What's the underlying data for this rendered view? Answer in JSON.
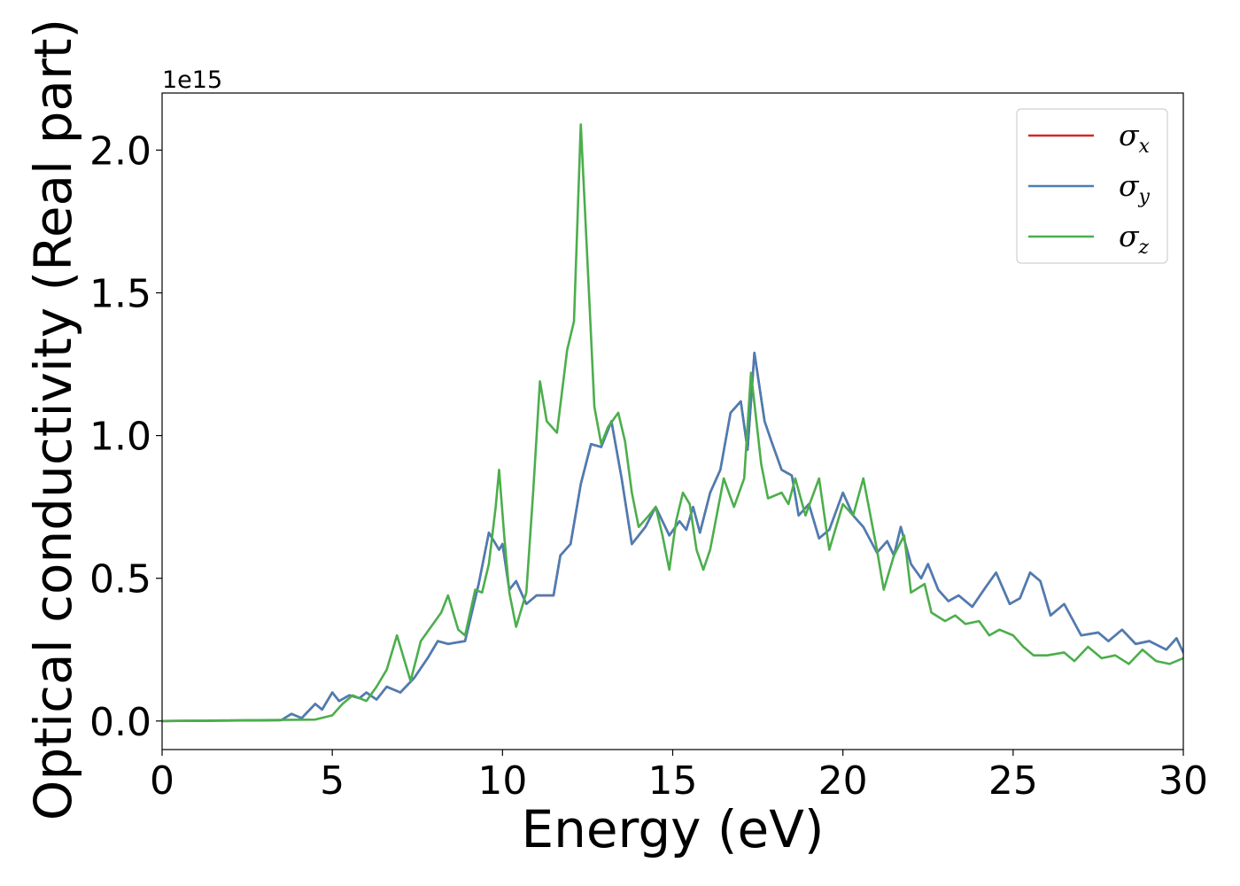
{
  "chart_data": {
    "type": "line",
    "xlabel": "Energy (eV)",
    "ylabel": "Optical conductivity (Real part)",
    "y_offset_label": "1e15",
    "xlim": [
      0,
      30
    ],
    "ylim": [
      -0.1,
      2.2
    ],
    "x_ticks": [
      0,
      5,
      10,
      15,
      20,
      25,
      30
    ],
    "x_tick_labels": [
      "0",
      "5",
      "10",
      "15",
      "20",
      "25",
      "30"
    ],
    "y_ticks": [
      0.0,
      0.5,
      1.0,
      1.5,
      2.0
    ],
    "y_tick_labels": [
      "0.0",
      "0.5",
      "1.0",
      "1.5",
      "2.0"
    ],
    "grid": false,
    "legend_position": "top-right",
    "series": [
      {
        "name": "σx",
        "base": "σ",
        "sub": "x",
        "color": "#d62728",
        "points": [
          [
            0,
            0
          ],
          [
            3.5,
            0.003
          ],
          [
            3.8,
            0.025
          ],
          [
            4.1,
            0.01
          ],
          [
            4.5,
            0.06
          ],
          [
            4.7,
            0.04
          ],
          [
            5.0,
            0.1
          ],
          [
            5.2,
            0.07
          ],
          [
            5.5,
            0.09
          ],
          [
            5.8,
            0.08
          ],
          [
            6.0,
            0.1
          ],
          [
            6.3,
            0.075
          ],
          [
            6.6,
            0.12
          ],
          [
            7.0,
            0.1
          ],
          [
            7.4,
            0.15
          ],
          [
            7.8,
            0.22
          ],
          [
            8.1,
            0.28
          ],
          [
            8.4,
            0.27
          ],
          [
            8.9,
            0.28
          ],
          [
            9.3,
            0.48
          ],
          [
            9.6,
            0.66
          ],
          [
            9.9,
            0.6
          ],
          [
            10.0,
            0.62
          ],
          [
            10.2,
            0.46
          ],
          [
            10.4,
            0.49
          ],
          [
            10.7,
            0.41
          ],
          [
            11.0,
            0.44
          ],
          [
            11.5,
            0.44
          ],
          [
            11.7,
            0.58
          ],
          [
            12.0,
            0.62
          ],
          [
            12.3,
            0.83
          ],
          [
            12.6,
            0.97
          ],
          [
            12.9,
            0.96
          ],
          [
            13.2,
            1.05
          ],
          [
            13.5,
            0.85
          ],
          [
            13.8,
            0.62
          ],
          [
            14.2,
            0.68
          ],
          [
            14.5,
            0.75
          ],
          [
            14.9,
            0.65
          ],
          [
            15.2,
            0.7
          ],
          [
            15.4,
            0.67
          ],
          [
            15.6,
            0.75
          ],
          [
            15.8,
            0.66
          ],
          [
            16.1,
            0.8
          ],
          [
            16.4,
            0.88
          ],
          [
            16.7,
            1.08
          ],
          [
            17.0,
            1.12
          ],
          [
            17.2,
            0.95
          ],
          [
            17.4,
            1.29
          ],
          [
            17.7,
            1.05
          ],
          [
            17.9,
            0.98
          ],
          [
            18.2,
            0.88
          ],
          [
            18.5,
            0.86
          ],
          [
            18.7,
            0.72
          ],
          [
            19.0,
            0.76
          ],
          [
            19.3,
            0.64
          ],
          [
            19.6,
            0.67
          ],
          [
            20.0,
            0.8
          ],
          [
            20.3,
            0.72
          ],
          [
            20.6,
            0.68
          ],
          [
            21.0,
            0.59
          ],
          [
            21.3,
            0.63
          ],
          [
            21.5,
            0.58
          ],
          [
            21.7,
            0.68
          ],
          [
            22.0,
            0.55
          ],
          [
            22.3,
            0.5
          ],
          [
            22.5,
            0.55
          ],
          [
            22.8,
            0.46
          ],
          [
            23.1,
            0.42
          ],
          [
            23.4,
            0.44
          ],
          [
            23.8,
            0.4
          ],
          [
            24.2,
            0.47
          ],
          [
            24.5,
            0.52
          ],
          [
            24.9,
            0.41
          ],
          [
            25.2,
            0.43
          ],
          [
            25.5,
            0.52
          ],
          [
            25.8,
            0.49
          ],
          [
            26.1,
            0.37
          ],
          [
            26.5,
            0.41
          ],
          [
            27.0,
            0.3
          ],
          [
            27.5,
            0.31
          ],
          [
            27.8,
            0.28
          ],
          [
            28.2,
            0.32
          ],
          [
            28.6,
            0.27
          ],
          [
            29.0,
            0.28
          ],
          [
            29.5,
            0.25
          ],
          [
            29.8,
            0.29
          ],
          [
            30.0,
            0.24
          ]
        ]
      },
      {
        "name": "σy",
        "base": "σ",
        "sub": "y",
        "color": "#4a7eb5",
        "points": [
          [
            0,
            0
          ],
          [
            3.5,
            0.003
          ],
          [
            3.8,
            0.025
          ],
          [
            4.1,
            0.01
          ],
          [
            4.5,
            0.06
          ],
          [
            4.7,
            0.04
          ],
          [
            5.0,
            0.1
          ],
          [
            5.2,
            0.07
          ],
          [
            5.5,
            0.09
          ],
          [
            5.8,
            0.08
          ],
          [
            6.0,
            0.1
          ],
          [
            6.3,
            0.075
          ],
          [
            6.6,
            0.12
          ],
          [
            7.0,
            0.1
          ],
          [
            7.4,
            0.15
          ],
          [
            7.8,
            0.22
          ],
          [
            8.1,
            0.28
          ],
          [
            8.4,
            0.27
          ],
          [
            8.9,
            0.28
          ],
          [
            9.3,
            0.48
          ],
          [
            9.6,
            0.66
          ],
          [
            9.9,
            0.6
          ],
          [
            10.0,
            0.62
          ],
          [
            10.2,
            0.46
          ],
          [
            10.4,
            0.49
          ],
          [
            10.7,
            0.41
          ],
          [
            11.0,
            0.44
          ],
          [
            11.5,
            0.44
          ],
          [
            11.7,
            0.58
          ],
          [
            12.0,
            0.62
          ],
          [
            12.3,
            0.83
          ],
          [
            12.6,
            0.97
          ],
          [
            12.9,
            0.96
          ],
          [
            13.2,
            1.05
          ],
          [
            13.5,
            0.85
          ],
          [
            13.8,
            0.62
          ],
          [
            14.2,
            0.68
          ],
          [
            14.5,
            0.75
          ],
          [
            14.9,
            0.65
          ],
          [
            15.2,
            0.7
          ],
          [
            15.4,
            0.67
          ],
          [
            15.6,
            0.75
          ],
          [
            15.8,
            0.66
          ],
          [
            16.1,
            0.8
          ],
          [
            16.4,
            0.88
          ],
          [
            16.7,
            1.08
          ],
          [
            17.0,
            1.12
          ],
          [
            17.2,
            0.95
          ],
          [
            17.4,
            1.29
          ],
          [
            17.7,
            1.05
          ],
          [
            17.9,
            0.98
          ],
          [
            18.2,
            0.88
          ],
          [
            18.5,
            0.86
          ],
          [
            18.7,
            0.72
          ],
          [
            19.0,
            0.76
          ],
          [
            19.3,
            0.64
          ],
          [
            19.6,
            0.67
          ],
          [
            20.0,
            0.8
          ],
          [
            20.3,
            0.72
          ],
          [
            20.6,
            0.68
          ],
          [
            21.0,
            0.59
          ],
          [
            21.3,
            0.63
          ],
          [
            21.5,
            0.58
          ],
          [
            21.7,
            0.68
          ],
          [
            22.0,
            0.55
          ],
          [
            22.3,
            0.5
          ],
          [
            22.5,
            0.55
          ],
          [
            22.8,
            0.46
          ],
          [
            23.1,
            0.42
          ],
          [
            23.4,
            0.44
          ],
          [
            23.8,
            0.4
          ],
          [
            24.2,
            0.47
          ],
          [
            24.5,
            0.52
          ],
          [
            24.9,
            0.41
          ],
          [
            25.2,
            0.43
          ],
          [
            25.5,
            0.52
          ],
          [
            25.8,
            0.49
          ],
          [
            26.1,
            0.37
          ],
          [
            26.5,
            0.41
          ],
          [
            27.0,
            0.3
          ],
          [
            27.5,
            0.31
          ],
          [
            27.8,
            0.28
          ],
          [
            28.2,
            0.32
          ],
          [
            28.6,
            0.27
          ],
          [
            29.0,
            0.28
          ],
          [
            29.5,
            0.25
          ],
          [
            29.8,
            0.29
          ],
          [
            30.0,
            0.24
          ]
        ]
      },
      {
        "name": "σz",
        "base": "σ",
        "sub": "z",
        "color": "#4cae4c",
        "points": [
          [
            0,
            0
          ],
          [
            4.5,
            0.005
          ],
          [
            5.0,
            0.02
          ],
          [
            5.3,
            0.06
          ],
          [
            5.6,
            0.09
          ],
          [
            6.0,
            0.07
          ],
          [
            6.3,
            0.12
          ],
          [
            6.6,
            0.18
          ],
          [
            6.9,
            0.3
          ],
          [
            7.1,
            0.22
          ],
          [
            7.3,
            0.14
          ],
          [
            7.6,
            0.28
          ],
          [
            7.9,
            0.33
          ],
          [
            8.2,
            0.38
          ],
          [
            8.4,
            0.44
          ],
          [
            8.7,
            0.32
          ],
          [
            8.9,
            0.3
          ],
          [
            9.2,
            0.46
          ],
          [
            9.4,
            0.45
          ],
          [
            9.6,
            0.55
          ],
          [
            9.8,
            0.75
          ],
          [
            9.9,
            0.88
          ],
          [
            10.05,
            0.65
          ],
          [
            10.2,
            0.45
          ],
          [
            10.4,
            0.33
          ],
          [
            10.7,
            0.45
          ],
          [
            10.9,
            0.8
          ],
          [
            11.1,
            1.19
          ],
          [
            11.3,
            1.05
          ],
          [
            11.6,
            1.01
          ],
          [
            11.9,
            1.3
          ],
          [
            12.1,
            1.4
          ],
          [
            12.3,
            2.09
          ],
          [
            12.5,
            1.6
          ],
          [
            12.7,
            1.1
          ],
          [
            12.9,
            0.97
          ],
          [
            13.1,
            1.03
          ],
          [
            13.4,
            1.08
          ],
          [
            13.6,
            0.98
          ],
          [
            13.8,
            0.8
          ],
          [
            14.0,
            0.68
          ],
          [
            14.3,
            0.72
          ],
          [
            14.5,
            0.75
          ],
          [
            14.7,
            0.65
          ],
          [
            14.9,
            0.53
          ],
          [
            15.1,
            0.7
          ],
          [
            15.3,
            0.8
          ],
          [
            15.5,
            0.76
          ],
          [
            15.7,
            0.6
          ],
          [
            15.9,
            0.53
          ],
          [
            16.1,
            0.6
          ],
          [
            16.5,
            0.85
          ],
          [
            16.8,
            0.75
          ],
          [
            17.1,
            0.85
          ],
          [
            17.3,
            1.22
          ],
          [
            17.6,
            0.9
          ],
          [
            17.8,
            0.78
          ],
          [
            18.2,
            0.8
          ],
          [
            18.4,
            0.76
          ],
          [
            18.6,
            0.85
          ],
          [
            18.9,
            0.72
          ],
          [
            19.3,
            0.85
          ],
          [
            19.6,
            0.6
          ],
          [
            20.0,
            0.76
          ],
          [
            20.3,
            0.72
          ],
          [
            20.6,
            0.85
          ],
          [
            21.0,
            0.6
          ],
          [
            21.2,
            0.46
          ],
          [
            21.5,
            0.58
          ],
          [
            21.8,
            0.65
          ],
          [
            22.0,
            0.45
          ],
          [
            22.4,
            0.48
          ],
          [
            22.6,
            0.38
          ],
          [
            23.0,
            0.35
          ],
          [
            23.3,
            0.37
          ],
          [
            23.6,
            0.34
          ],
          [
            24.0,
            0.35
          ],
          [
            24.3,
            0.3
          ],
          [
            24.6,
            0.32
          ],
          [
            25.0,
            0.3
          ],
          [
            25.3,
            0.26
          ],
          [
            25.6,
            0.23
          ],
          [
            26.0,
            0.23
          ],
          [
            26.5,
            0.24
          ],
          [
            26.8,
            0.21
          ],
          [
            27.2,
            0.26
          ],
          [
            27.6,
            0.22
          ],
          [
            28.0,
            0.23
          ],
          [
            28.4,
            0.2
          ],
          [
            28.8,
            0.25
          ],
          [
            29.2,
            0.21
          ],
          [
            29.6,
            0.2
          ],
          [
            30.0,
            0.22
          ]
        ]
      }
    ]
  }
}
